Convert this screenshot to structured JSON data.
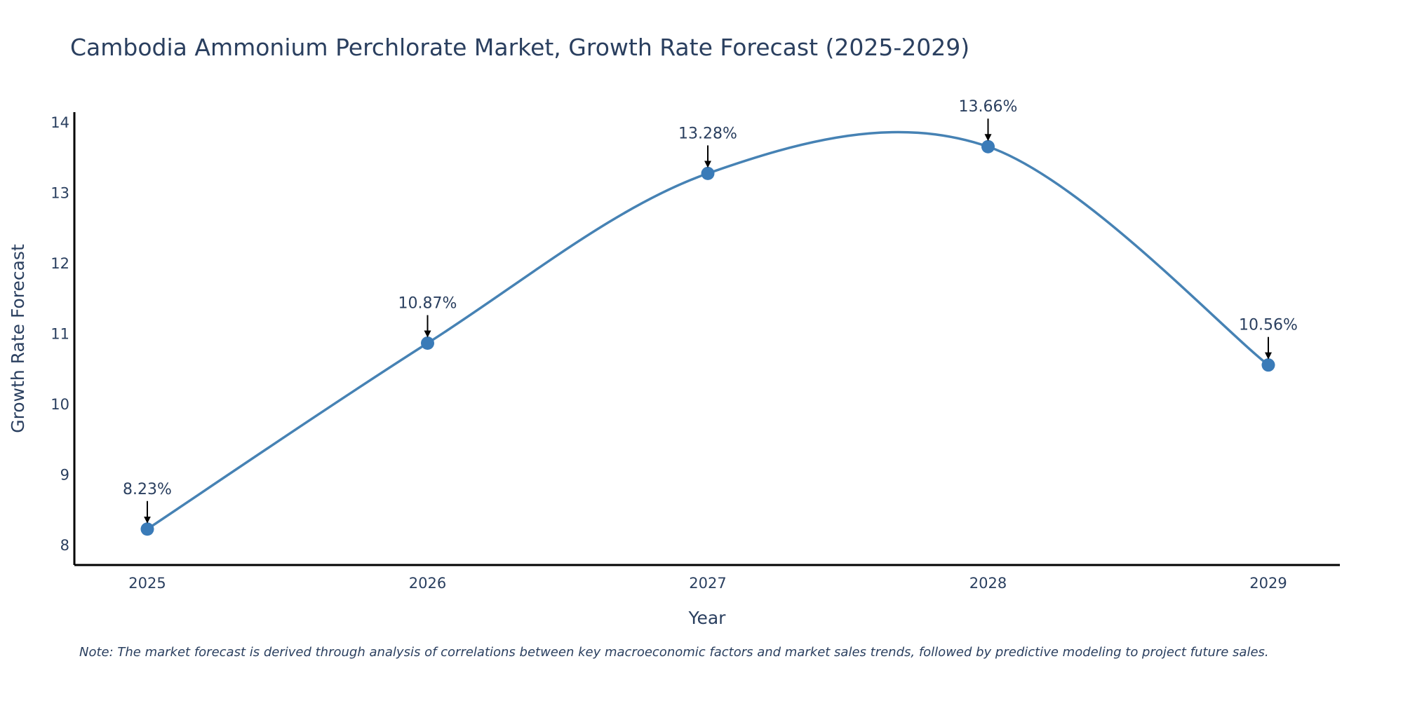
{
  "chart_data": {
    "type": "line",
    "title": "Cambodia Ammonium Perchlorate Market, Growth Rate Forecast (2025-2029)",
    "xlabel": "Year",
    "ylabel": "Growth Rate Forecast",
    "categories": [
      "2025",
      "2026",
      "2027",
      "2028",
      "2029"
    ],
    "values": [
      8.23,
      10.87,
      13.28,
      13.66,
      10.56
    ],
    "data_labels": [
      "8.23%",
      "10.87%",
      "13.28%",
      "13.66%",
      "10.56%"
    ],
    "yticks": [
      "8",
      "9",
      "10",
      "11",
      "12",
      "13",
      "14"
    ],
    "ylim": [
      7.72,
      14.15
    ],
    "line_shape": "spline",
    "grid": false,
    "legend": "none",
    "note": "Note: The market forecast is derived through analysis of correlations between key macroeconomic factors and market sales trends, followed by predictive modeling to project future sales."
  },
  "colors": {
    "line": "#4682b4",
    "marker": "#3a7bb8",
    "axis": "#000000",
    "text": "#2a3f5f",
    "arrow": "#000000"
  }
}
